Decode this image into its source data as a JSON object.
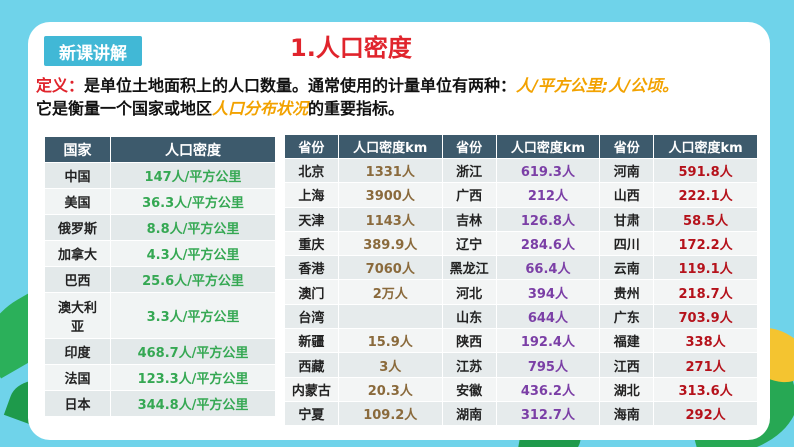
{
  "tag": "新课讲解",
  "title": "1.人口密度",
  "definition": {
    "label": "定义：",
    "text1": "是单位土地面积上的人口数量。通常使用的计量单位有两种：",
    "units": "人/平方公里;人/公顷。",
    "text2": "它是衡量一个国家或地区",
    "highlight": "人口分布状况",
    "text3": "的重要指标。"
  },
  "country_table": {
    "headers": [
      "国家",
      "人口密度"
    ],
    "rows": [
      [
        "中国",
        "147人/平方公里"
      ],
      [
        "美国",
        "36.3人/平方公里"
      ],
      [
        "俄罗斯",
        "8.8人/平方公里"
      ],
      [
        "加拿大",
        "4.3人/平方公里"
      ],
      [
        "巴西",
        "25.6人/平方公里"
      ],
      [
        "澳大利亚",
        "3.3人/平方公里"
      ],
      [
        "印度",
        "468.7人/平方公里"
      ],
      [
        "法国",
        "123.3人/平方公里"
      ],
      [
        "日本",
        "344.8人/平方公里"
      ]
    ]
  },
  "province_table": {
    "headers": [
      "省份",
      "人口密度km",
      "省份",
      "人口密度km",
      "省份",
      "人口密度km"
    ],
    "rows": [
      [
        "北京",
        "1331人",
        "浙江",
        "619.3人",
        "河南",
        "591.8人"
      ],
      [
        "上海",
        "3900人",
        "广西",
        "212人",
        "山西",
        "222.1人"
      ],
      [
        "天津",
        "1143人",
        "吉林",
        "126.8人",
        "甘肃",
        "58.5人"
      ],
      [
        "重庆",
        "389.9人",
        "辽宁",
        "284.6人",
        "四川",
        "172.2人"
      ],
      [
        "香港",
        "7060人",
        "黑龙江",
        "66.4人",
        "云南",
        "119.1人"
      ],
      [
        "澳门",
        "2万人",
        "河北",
        "394人",
        "贵州",
        "218.7人"
      ],
      [
        "台湾",
        "",
        "山东",
        "644人",
        "广东",
        "703.9人"
      ],
      [
        "新疆",
        "15.9人",
        "陕西",
        "192.4人",
        "福建",
        "338人"
      ],
      [
        "西藏",
        "3人",
        "江苏",
        "795人",
        "江西",
        "271人"
      ],
      [
        "内蒙古",
        "20.3人",
        "安徽",
        "436.2人",
        "湖北",
        "313.6人"
      ],
      [
        "宁夏",
        "109.2人",
        "湖南",
        "312.7人",
        "海南",
        "292人"
      ]
    ]
  },
  "colors": {
    "title_red": "#e0242c",
    "highlight_orange": "#f2a200",
    "header_bg": "#3d5a6c",
    "green_value": "#35a853",
    "tag_bg": "#41b8d6"
  }
}
